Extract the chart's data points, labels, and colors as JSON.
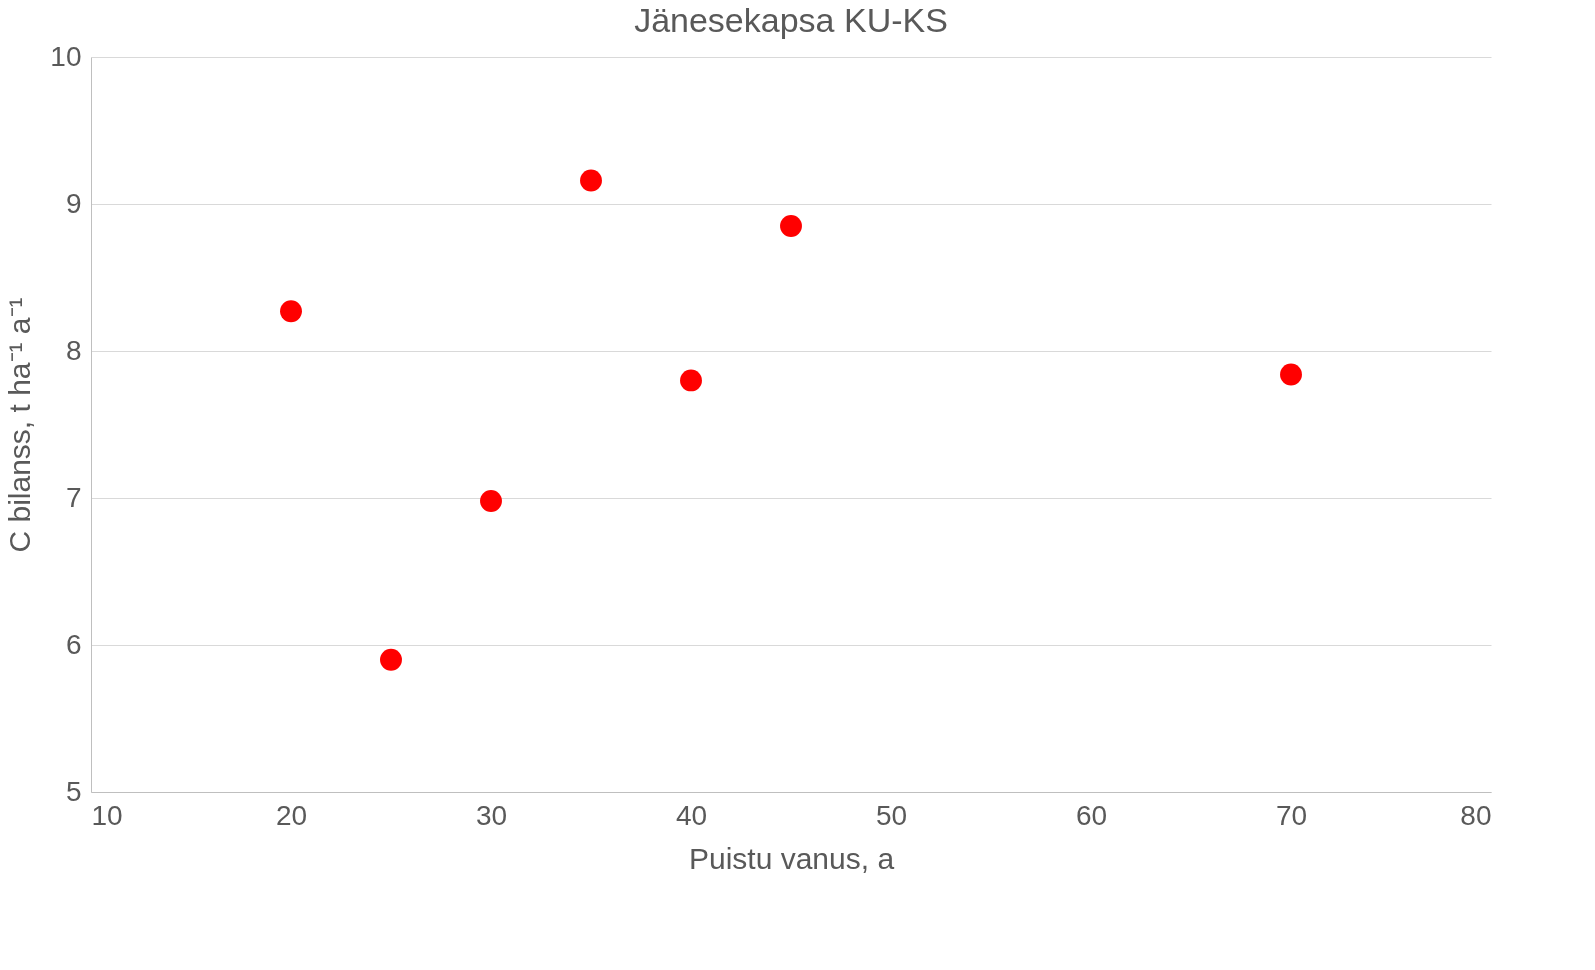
{
  "chart_data": {
    "type": "scatter",
    "title": "Jänesekapsa KU-KS",
    "xlabel": "Puistu vanus, a",
    "ylabel": "C bilanss, t ha⁻¹ a⁻¹",
    "x": [
      20,
      25,
      30,
      35,
      40,
      45,
      70
    ],
    "series": [
      {
        "color": "#ff0000",
        "values": [
          8.27,
          5.9,
          6.98,
          9.16,
          7.8,
          8.85,
          7.84
        ]
      }
    ],
    "xlim": [
      10,
      80
    ],
    "xticks": [
      10,
      20,
      30,
      40,
      50,
      60,
      70,
      80
    ],
    "ylim": [
      5,
      10
    ],
    "yticks": [
      5,
      6,
      7,
      8,
      9,
      10
    ],
    "grid": "y",
    "marker": "circle",
    "legend": false
  }
}
